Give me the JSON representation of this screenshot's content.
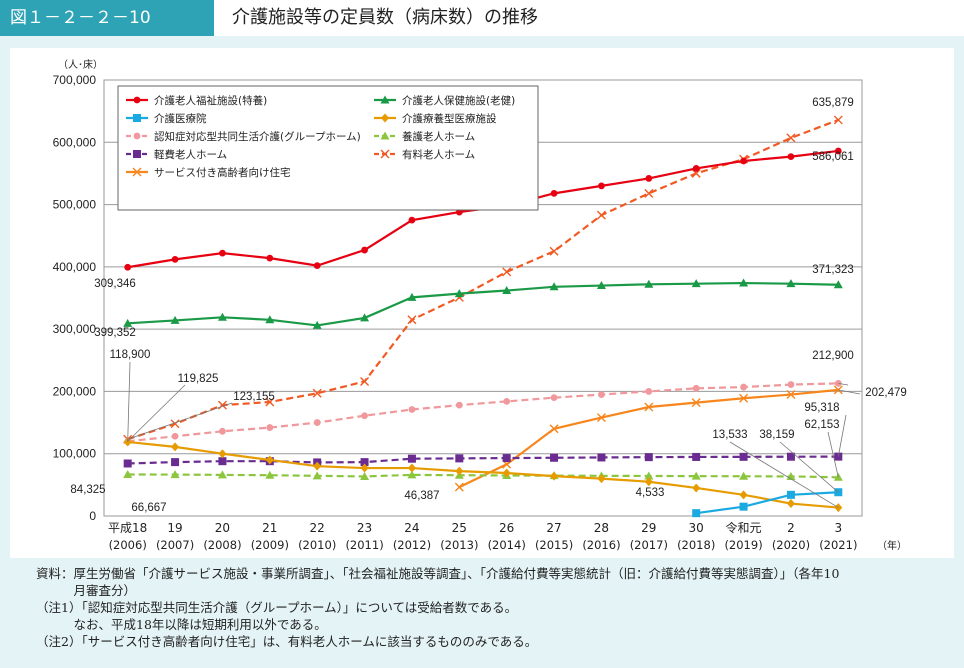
{
  "header": {
    "figure_label": "図１－２－２－10",
    "title": "介護施設等の定員数（病床数）の推移"
  },
  "chart_data": {
    "type": "line",
    "y_unit": "（人･床）",
    "x_unit": "（年）",
    "ylim": [
      0,
      700000
    ],
    "yticks": [
      "0",
      "100,000",
      "200,000",
      "300,000",
      "400,000",
      "500,000",
      "600,000",
      "700,000"
    ],
    "categories_top": [
      "平成18",
      "19",
      "20",
      "21",
      "22",
      "23",
      "24",
      "25",
      "26",
      "27",
      "28",
      "29",
      "30",
      "令和元",
      "2",
      "3"
    ],
    "categories_bottom": [
      "(2006)",
      "(2007)",
      "(2008)",
      "(2009)",
      "(2010)",
      "(2011)",
      "(2012)",
      "(2013)",
      "(2014)",
      "(2015)",
      "(2016)",
      "(2017)",
      "(2018)",
      "(2019)",
      "(2020)",
      "(2021)"
    ],
    "grid": true,
    "legend_position": "top-left",
    "series": [
      {
        "name": "介護老人福祉施設(特養)",
        "color": "#e60012",
        "dash": "solid",
        "marker": "circle",
        "values": [
          399352,
          412000,
          422000,
          414000,
          402000,
          427000,
          475000,
          488000,
          498000,
          518000,
          530000,
          542000,
          558000,
          570000,
          577000,
          586061
        ]
      },
      {
        "name": "介護老人保健施設(老健)",
        "color": "#1a9a46",
        "dash": "solid",
        "marker": "triangle",
        "values": [
          309346,
          314000,
          319000,
          315000,
          306000,
          318000,
          351000,
          357000,
          362000,
          368000,
          370000,
          372000,
          373000,
          374000,
          373000,
          371323
        ]
      },
      {
        "name": "介護医療院",
        "color": "#1aa9e0",
        "dash": "solid",
        "marker": "square",
        "values": [
          null,
          null,
          null,
          null,
          null,
          null,
          null,
          null,
          null,
          null,
          null,
          null,
          4533,
          15000,
          34000,
          38159
        ]
      },
      {
        "name": "介護療養型医療施設",
        "color": "#e69c00",
        "dash": "solid",
        "marker": "diamond",
        "values": [
          118900,
          111000,
          100000,
          90000,
          80000,
          77000,
          77000,
          72000,
          69000,
          64000,
          60000,
          55000,
          45000,
          34000,
          20000,
          13533
        ]
      },
      {
        "name": "認知症対応型共同生活介護(グループホーム)",
        "color": "#f0989b",
        "dash": "dashed",
        "marker": "circle",
        "values": [
          119825,
          128000,
          136000,
          142000,
          150000,
          161000,
          171000,
          178000,
          184000,
          190000,
          195000,
          200000,
          205000,
          207000,
          211000,
          212900
        ]
      },
      {
        "name": "養護老人ホーム",
        "color": "#8cc63f",
        "dash": "dashed",
        "marker": "triangle",
        "values": [
          66667,
          66500,
          66000,
          65500,
          64500,
          63500,
          66000,
          65500,
          65000,
          64800,
          64500,
          64300,
          64000,
          63800,
          63500,
          62153
        ]
      },
      {
        "name": "軽費老人ホーム",
        "color": "#6a2c91",
        "dash": "dashed",
        "marker": "square",
        "values": [
          84325,
          86500,
          88000,
          88000,
          86000,
          86500,
          92000,
          92500,
          93000,
          93500,
          94000,
          94500,
          94800,
          95000,
          95200,
          95318
        ]
      },
      {
        "name": "有料老人ホーム",
        "color": "#f15a24",
        "dash": "dashed",
        "marker": "x",
        "values": [
          123155,
          148000,
          178000,
          183000,
          197000,
          216000,
          315000,
          351000,
          392000,
          425000,
          483000,
          518000,
          550000,
          573000,
          607000,
          635879
        ]
      },
      {
        "name": "サービス付き高齢者向け住宅",
        "color": "#f7861c",
        "dash": "solid",
        "marker": "x",
        "values": [
          null,
          null,
          null,
          null,
          null,
          null,
          null,
          46387,
          83000,
          140000,
          158000,
          175000,
          182000,
          189000,
          195000,
          202479
        ]
      }
    ],
    "annotations": [
      {
        "text": "399,352"
      },
      {
        "text": "309,346"
      },
      {
        "text": "118,900"
      },
      {
        "text": "119,825"
      },
      {
        "text": "123,155"
      },
      {
        "text": "84,325"
      },
      {
        "text": "66,667"
      },
      {
        "text": "46,387"
      },
      {
        "text": "4,533"
      },
      {
        "text": "13,533"
      },
      {
        "text": "38,159"
      },
      {
        "text": "62,153"
      },
      {
        "text": "95,318"
      },
      {
        "text": "212,900"
      },
      {
        "text": "202,479"
      },
      {
        "text": "371,323"
      },
      {
        "text": "586,061"
      },
      {
        "text": "635,879"
      }
    ]
  },
  "notes": [
    "資料：厚生労働省「介護サービス施設・事業所調査」、「社会福祉施設等調査」、「介護給付費等実態統計（旧：介護給付費等実態調査）」（各年10",
    "　　　月審査分）",
    "（注1）「認知症対応型共同生活介護（グループホーム）」については受給者数である。",
    "　　　なお、平成18年以降は短期利用以外である。",
    "（注2）「サービス付き高齢者向け住宅」は、有料老人ホームに該当するもののみである。"
  ]
}
